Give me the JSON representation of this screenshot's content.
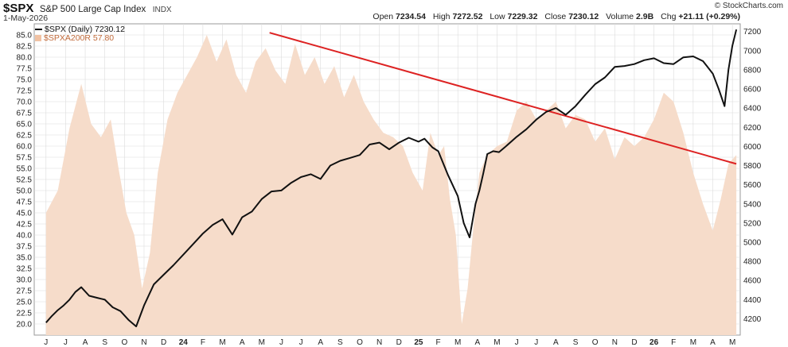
{
  "header": {
    "symbol": "$SPX",
    "name": "S&P 500 Large Cap Index",
    "exchange": "INDX",
    "date": "1-May-2026",
    "open_label": "Open",
    "open": "7234.54",
    "high_label": "High",
    "high": "7272.52",
    "low_label": "Low",
    "low": "7229.32",
    "close_label": "Close",
    "close": "7230.12",
    "volume_label": "Volume",
    "volume": "2.9B",
    "chg_label": "Chg",
    "chg": "+21.11 (+0.29%)",
    "brand": "© StockCharts.com"
  },
  "legend": {
    "spx": "$SPX (Daily) 7230.12",
    "a200": "$SPXA200R 57.80"
  },
  "colors": {
    "spx_line": "#111111",
    "a200_fill": "#f6dcca",
    "trendline": "#dd2222",
    "grid": "#dcdcdc"
  },
  "chart_data": {
    "type": "line",
    "x_tick_labels": [
      "J",
      "J",
      "A",
      "S",
      "O",
      "N",
      "D",
      "24",
      "F",
      "M",
      "A",
      "M",
      "J",
      "J",
      "A",
      "S",
      "O",
      "N",
      "D",
      "25",
      "F",
      "M",
      "A",
      "M",
      "J",
      "J",
      "A",
      "S",
      "O",
      "N",
      "D",
      "26",
      "F",
      "M",
      "A",
      "M"
    ],
    "left_axis": {
      "series": "$SPXA200R",
      "ylim": [
        17.5,
        87.5
      ],
      "ticks": [
        20.0,
        22.5,
        25.0,
        27.5,
        30.0,
        32.5,
        35.0,
        37.5,
        40.0,
        42.5,
        45.0,
        47.5,
        50.0,
        52.5,
        55.0,
        57.5,
        60.0,
        62.5,
        65.0,
        67.5,
        70.0,
        72.5,
        75.0,
        77.5,
        80.0,
        82.5,
        85.0
      ]
    },
    "right_axis": {
      "series": "$SPX",
      "ylim": [
        4030,
        7280
      ],
      "ticks": [
        4200,
        4400,
        4600,
        4800,
        5000,
        5200,
        5400,
        5600,
        5800,
        6000,
        6200,
        6400,
        6600,
        6800,
        7000,
        7200
      ]
    },
    "series": [
      {
        "name": "$SPX (Daily) 7230.12",
        "axis": "right",
        "x": [
          0,
          0.3,
          0.6,
          0.9,
          1.2,
          1.5,
          1.8,
          2.2,
          2.6,
          3,
          3.4,
          3.8,
          4.2,
          4.6,
          5,
          5.5,
          6,
          6.5,
          7,
          7.5,
          8,
          8.5,
          9,
          9.5,
          10,
          10.5,
          11,
          11.5,
          12,
          12.5,
          13,
          13.5,
          14,
          14.5,
          15,
          15.5,
          16,
          16.5,
          17,
          17.5,
          18,
          18.5,
          19,
          19.3,
          19.7,
          20,
          20.5,
          21,
          21.3,
          21.6,
          21.9,
          22.1,
          22.3,
          22.5,
          22.8,
          23.1,
          23.5,
          24,
          24.5,
          25,
          25.5,
          26,
          26.5,
          27,
          27.5,
          28,
          28.5,
          29,
          29.5,
          30,
          30.5,
          31,
          31.5,
          32,
          32.5,
          33,
          33.5,
          34,
          34.3,
          34.6,
          34.8,
          35,
          35.2
        ],
        "values": [
          4160,
          4230,
          4290,
          4340,
          4400,
          4480,
          4530,
          4440,
          4420,
          4400,
          4320,
          4280,
          4190,
          4120,
          4340,
          4560,
          4660,
          4760,
          4870,
          4980,
          5090,
          5180,
          5240,
          5080,
          5260,
          5320,
          5450,
          5530,
          5540,
          5620,
          5680,
          5710,
          5660,
          5800,
          5850,
          5880,
          5910,
          6020,
          6040,
          5970,
          6040,
          6090,
          6050,
          6080,
          5990,
          5950,
          5700,
          5480,
          5200,
          5050,
          5400,
          5540,
          5720,
          5920,
          5950,
          5940,
          6010,
          6100,
          6180,
          6280,
          6360,
          6400,
          6330,
          6420,
          6540,
          6650,
          6720,
          6830,
          6840,
          6860,
          6900,
          6920,
          6870,
          6860,
          6930,
          6940,
          6890,
          6760,
          6600,
          6420,
          6800,
          7050,
          7220
        ]
      },
      {
        "name": "$SPXA200R 57.80",
        "axis": "left",
        "x": [
          0,
          0.6,
          1.2,
          1.8,
          2.3,
          2.8,
          3.3,
          3.7,
          4.1,
          4.5,
          4.9,
          5.3,
          5.7,
          6.2,
          6.7,
          7.2,
          7.7,
          8.2,
          8.7,
          9.2,
          9.7,
          10.2,
          10.7,
          11.2,
          11.7,
          12.2,
          12.7,
          13.2,
          13.7,
          14.2,
          14.7,
          15.2,
          15.7,
          16.2,
          16.7,
          17.2,
          17.7,
          18.2,
          18.7,
          19.2,
          19.6,
          20,
          20.3,
          20.6,
          20.9,
          21.2,
          21.5,
          21.8,
          22.1,
          22.5,
          23,
          23.5,
          24,
          24.5,
          25,
          25.5,
          26,
          26.5,
          27,
          27.5,
          28,
          28.5,
          29,
          29.5,
          30,
          30.5,
          31,
          31.5,
          32,
          32.5,
          33,
          33.5,
          34,
          34.4,
          34.8,
          35.2
        ],
        "values": [
          45,
          50,
          64,
          74,
          65,
          62,
          66,
          55,
          45,
          40,
          28,
          36,
          54,
          66,
          72,
          76,
          80,
          85,
          79,
          84,
          76,
          72,
          79,
          82,
          77,
          74,
          83,
          76,
          80,
          74,
          78,
          71,
          76,
          70,
          66,
          63,
          62,
          60,
          54,
          50,
          63,
          58,
          60,
          48,
          40,
          20,
          28,
          42,
          54,
          58,
          60,
          61,
          68,
          70,
          66,
          68,
          70,
          64,
          67,
          66,
          61,
          64,
          57,
          62,
          60,
          62,
          66,
          72,
          70,
          63,
          54,
          47,
          41,
          48,
          56,
          58
        ]
      },
      {
        "name": "trendline",
        "axis": "left",
        "x": [
          11.4,
          35.2
        ],
        "values": [
          85.5,
          56.0
        ]
      }
    ]
  }
}
